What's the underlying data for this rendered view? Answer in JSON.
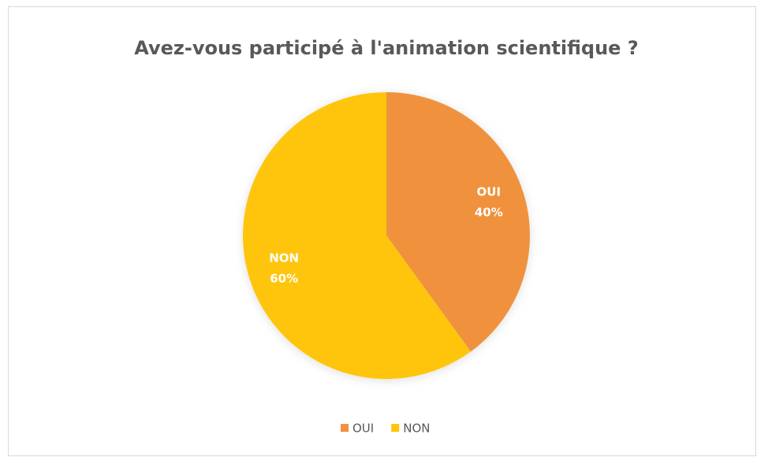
{
  "chart_data": {
    "type": "pie",
    "title": "Avez-vous participé à l'animation scientifique ?",
    "categories": [
      "OUI",
      "NON"
    ],
    "values": [
      40,
      60
    ],
    "value_labels": [
      "40%",
      "60%"
    ],
    "colors": [
      "#f0923e",
      "#ffc50a"
    ],
    "legend": "bottom"
  }
}
